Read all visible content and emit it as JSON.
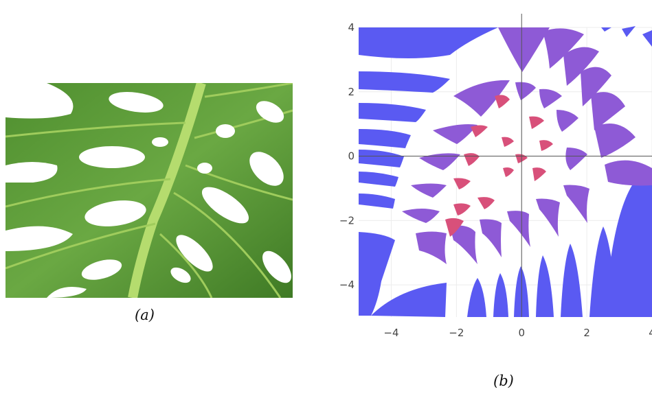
{
  "captions": {
    "a": "(a)",
    "b": "(b)"
  },
  "leaf_image": {
    "subject": "monstera-leaf-photo",
    "leaf_color": "#5a9a3a",
    "vein_color": "#b5dc6e"
  },
  "chart_data": {
    "type": "other",
    "xlim": [
      -5,
      4
    ],
    "ylim": [
      -5,
      4
    ],
    "xticks": [
      -4,
      -2,
      0,
      2,
      4
    ],
    "yticks": [
      -4,
      -2,
      0,
      2,
      4
    ],
    "xtick_labels": [
      "−4",
      "−2",
      "0",
      "2",
      "4"
    ],
    "ytick_labels": [
      "−4",
      "−2",
      "0",
      "2",
      "4"
    ],
    "grid": true,
    "colors": {
      "outer": "#5a5af2",
      "mid": "#8e5ad6",
      "inner": "#d8507a"
    }
  }
}
